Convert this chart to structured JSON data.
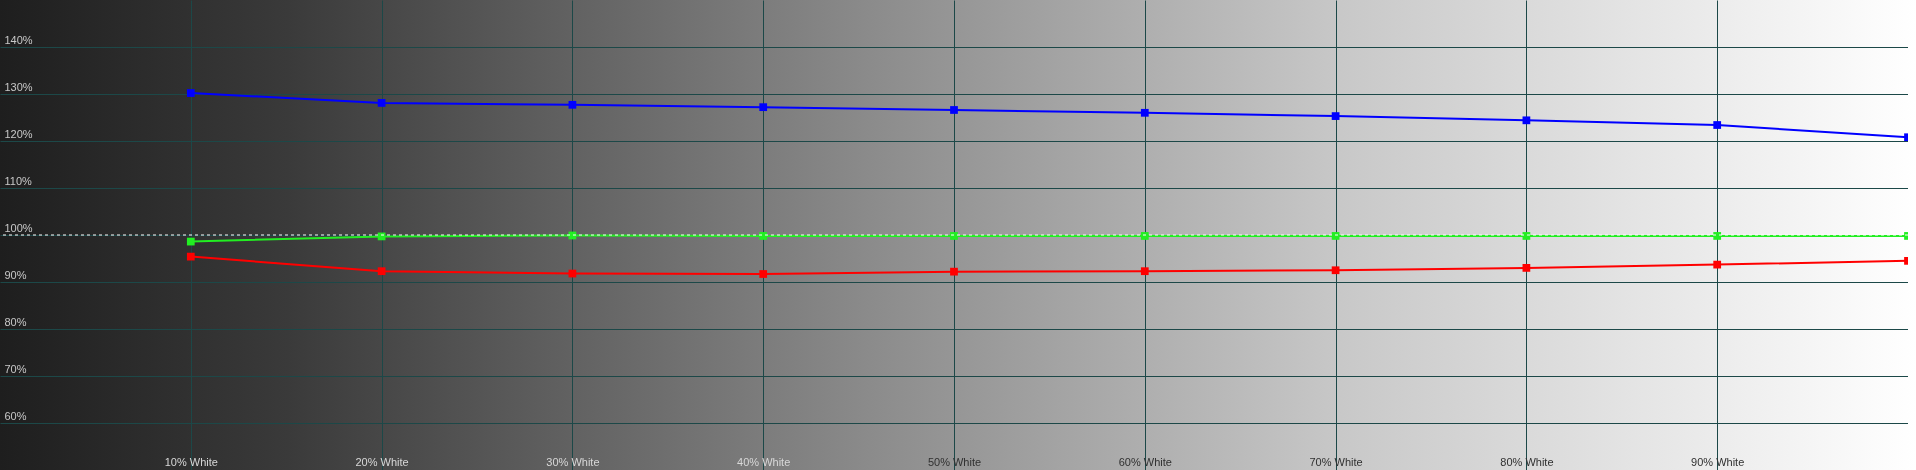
{
  "chart_data": {
    "type": "line",
    "x": [
      10,
      20,
      30,
      40,
      50,
      60,
      70,
      80,
      90,
      100
    ],
    "xlim": [
      0,
      100
    ],
    "xticks": [
      {
        "value": 10,
        "label": "10% White"
      },
      {
        "value": 20,
        "label": "20% White"
      },
      {
        "value": 30,
        "label": "30% White"
      },
      {
        "value": 40,
        "label": "40% White"
      },
      {
        "value": 50,
        "label": "50% White"
      },
      {
        "value": 60,
        "label": "60% White"
      },
      {
        "value": 70,
        "label": "70% White"
      },
      {
        "value": 80,
        "label": "80% White"
      },
      {
        "value": 90,
        "label": "90% White"
      }
    ],
    "ylim": [
      50,
      150
    ],
    "yticks": [
      {
        "value": 60,
        "label": "60%"
      },
      {
        "value": 70,
        "label": "70%"
      },
      {
        "value": 80,
        "label": "80%"
      },
      {
        "value": 90,
        "label": "90%"
      },
      {
        "value": 100,
        "label": "100%"
      },
      {
        "value": 110,
        "label": "110%"
      },
      {
        "value": 120,
        "label": "120%"
      },
      {
        "value": 130,
        "label": "130%"
      },
      {
        "value": 140,
        "label": "140%"
      }
    ],
    "series": [
      {
        "color": "#0000ff",
        "values": [
          130.2,
          128.1,
          127.7,
          127.2,
          126.6,
          126.0,
          125.3,
          124.4,
          123.4,
          120.8
        ]
      },
      {
        "color": "#22ee22",
        "values": [
          98.6,
          99.7,
          99.9,
          99.8,
          99.8,
          99.8,
          99.8,
          99.8,
          99.8,
          99.8
        ]
      },
      {
        "color": "#ff0000",
        "values": [
          95.4,
          92.3,
          91.8,
          91.7,
          92.2,
          92.3,
          92.5,
          93.0,
          93.7,
          94.5
        ]
      }
    ],
    "ref_lines": [
      {
        "axis": "y",
        "value": 100,
        "color": "#ffffff",
        "line_style": "dashed"
      }
    ],
    "grid": true,
    "marker": "square"
  }
}
